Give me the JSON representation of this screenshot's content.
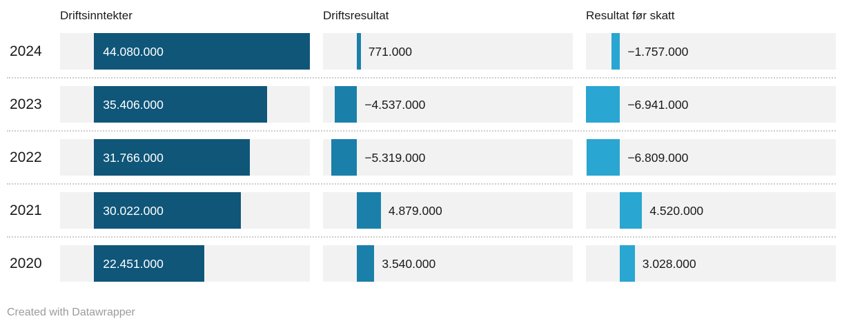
{
  "chart_data": {
    "type": "bar",
    "orientation": "horizontal",
    "categories": [
      "2024",
      "2023",
      "2022",
      "2021",
      "2020"
    ],
    "series": [
      {
        "name": "Driftsinntekter",
        "color": "#0f5679",
        "label_position": "inside",
        "values": [
          44080000,
          35406000,
          31766000,
          30022000,
          22451000
        ],
        "value_labels": [
          "44.080.000",
          "35.406.000",
          "31.766.000",
          "30.022.000",
          "22.451.000"
        ]
      },
      {
        "name": "Driftsresultat",
        "color": "#1a80a9",
        "label_position": "outside",
        "values": [
          771000,
          -4537000,
          -5319000,
          4879000,
          3540000
        ],
        "value_labels": [
          "771.000",
          "−4.537.000",
          "−5.319.000",
          "4.879.000",
          "3.540.000"
        ]
      },
      {
        "name": "Resultat før skatt",
        "color": "#29a6d1",
        "label_position": "outside",
        "values": [
          -1757000,
          -6941000,
          -6809000,
          4520000,
          3028000
        ],
        "value_labels": [
          "−1.757.000",
          "−6.941.000",
          "−6.809.000",
          "4.520.000",
          "3.028.000"
        ]
      }
    ],
    "xlim": [
      -6941000,
      44080000
    ],
    "grid": false,
    "legend": false,
    "track_color": "#f2f2f2",
    "separator_color": "#cccccc"
  },
  "colors": {
    "text": "#1a1a1a",
    "value_label_inside": "#ffffff",
    "credit": "#9b9b9b"
  },
  "footer": {
    "credit": "Created with Datawrapper"
  }
}
